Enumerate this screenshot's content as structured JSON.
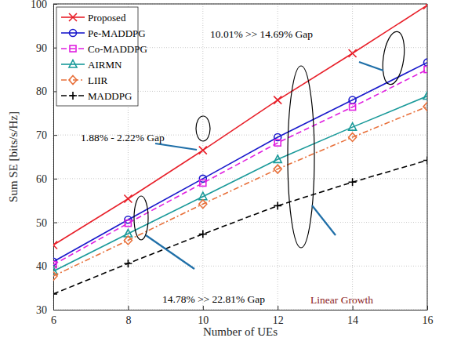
{
  "chart_data": {
    "type": "line",
    "xlabel": "Number of UEs",
    "ylabel": "Sum SE [bits/s/Hz]",
    "x": [
      6,
      8,
      10,
      12,
      14,
      16
    ],
    "xlim": [
      6,
      16
    ],
    "ylim": [
      30,
      100
    ],
    "xticks": [
      6,
      8,
      10,
      12,
      14,
      16
    ],
    "yticks": [
      30,
      40,
      50,
      60,
      70,
      80,
      90,
      100
    ],
    "grid": true,
    "legend": "top-left",
    "series": [
      {
        "name": "Proposed",
        "color": "#e8202a",
        "marker": "x",
        "line_style": "solid",
        "values": [
          44.8,
          55.4,
          66.5,
          78.0,
          88.7,
          99.7
        ]
      },
      {
        "name": "Pe-MADDPG",
        "color": "#1a1acc",
        "marker": "circle",
        "line_style": "solid",
        "values": [
          41.0,
          50.6,
          60.0,
          69.5,
          78.0,
          86.6
        ]
      },
      {
        "name": "Co-MADDPG",
        "color": "#e020e0",
        "marker": "square",
        "line_style": "dashed",
        "values": [
          40.3,
          49.8,
          59.0,
          68.2,
          76.4,
          85.0
        ]
      },
      {
        "name": "AIRMN",
        "color": "#1a9a9a",
        "marker": "triangle",
        "line_style": "solid",
        "values": [
          38.8,
          47.4,
          55.9,
          64.4,
          71.8,
          78.9
        ]
      },
      {
        "name": "LIIR",
        "color": "#e8703a",
        "marker": "diamond",
        "line_style": "dashdot",
        "values": [
          37.7,
          45.9,
          54.2,
          62.2,
          69.5,
          76.5
        ]
      },
      {
        "name": "MADDPG",
        "color": "#000000",
        "marker": "plus",
        "line_style": "dashed",
        "values": [
          33.6,
          40.6,
          47.3,
          53.8,
          59.2,
          64.2
        ]
      }
    ],
    "annotations": [
      "10.01% >> 14.69% Gap",
      "1.88% - 2.22% Gap",
      "Linear Growth",
      "14.78% >> 22.81% Gap"
    ]
  }
}
